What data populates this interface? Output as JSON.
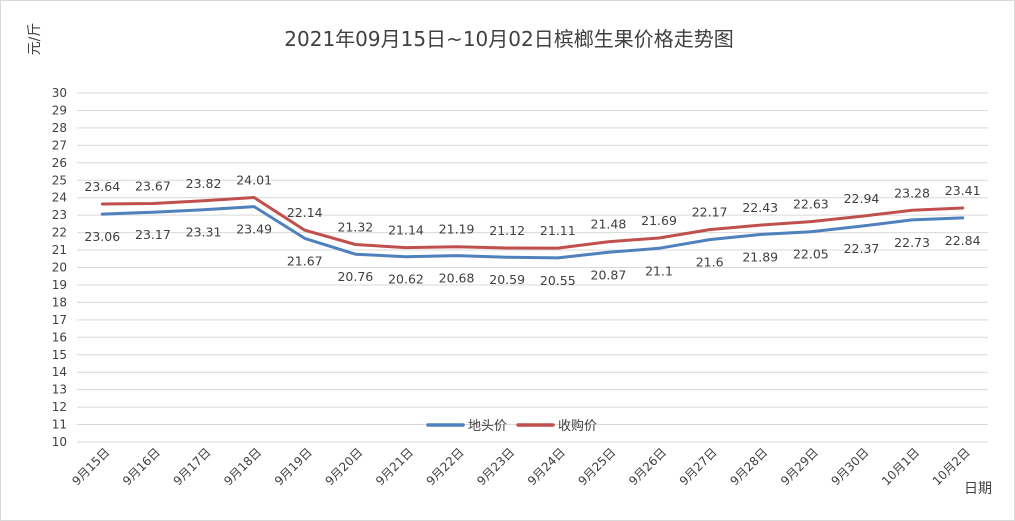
{
  "chart_data": {
    "type": "line",
    "title": "2021年09月15日~10月02日槟榔生果价格走势图",
    "xlabel": "日期",
    "ylabel": "元/斤",
    "ylim": [
      10,
      30
    ],
    "yticks": [
      10,
      11,
      12,
      13,
      14,
      15,
      16,
      17,
      18,
      19,
      20,
      21,
      22,
      23,
      24,
      25,
      26,
      27,
      28,
      29,
      30
    ],
    "grid": true,
    "legend_position": "bottom-center",
    "categories": [
      "9月15日",
      "9月16日",
      "9月17日",
      "9月18日",
      "9月19日",
      "9月20日",
      "9月21日",
      "9月22日",
      "9月23日",
      "9月24日",
      "9月25日",
      "9月26日",
      "9月27日",
      "9月28日",
      "9月29日",
      "9月30日",
      "10月1日",
      "10月2日"
    ],
    "series": [
      {
        "name": "地头价",
        "color": "#4f81bd",
        "values": [
          23.06,
          23.17,
          23.31,
          23.49,
          21.67,
          20.76,
          20.62,
          20.68,
          20.59,
          20.55,
          20.87,
          21.1,
          21.6,
          21.89,
          22.05,
          22.37,
          22.73,
          22.84
        ],
        "labels": [
          "23.06",
          "23.17",
          "23.31",
          "23.49",
          "21.67",
          "20.76",
          "20.62",
          "20.68",
          "20.59",
          "20.55",
          "20.87",
          "21.1",
          "21.6",
          "21.89",
          "22.05",
          "22.37",
          "22.73",
          "22.84"
        ]
      },
      {
        "name": "收购价",
        "color": "#c0504d",
        "values": [
          23.64,
          23.67,
          23.82,
          24.01,
          22.14,
          21.32,
          21.14,
          21.19,
          21.12,
          21.11,
          21.48,
          21.69,
          22.17,
          22.43,
          22.63,
          22.94,
          23.28,
          23.41
        ],
        "labels": [
          "23.64",
          "23.67",
          "23.82",
          "24.01",
          "22.14",
          "21.32",
          "21.14",
          "21.19",
          "21.12",
          "21.11",
          "21.48",
          "21.69",
          "22.17",
          "22.43",
          "22.63",
          "22.94",
          "23.28",
          "23.41"
        ]
      }
    ]
  }
}
